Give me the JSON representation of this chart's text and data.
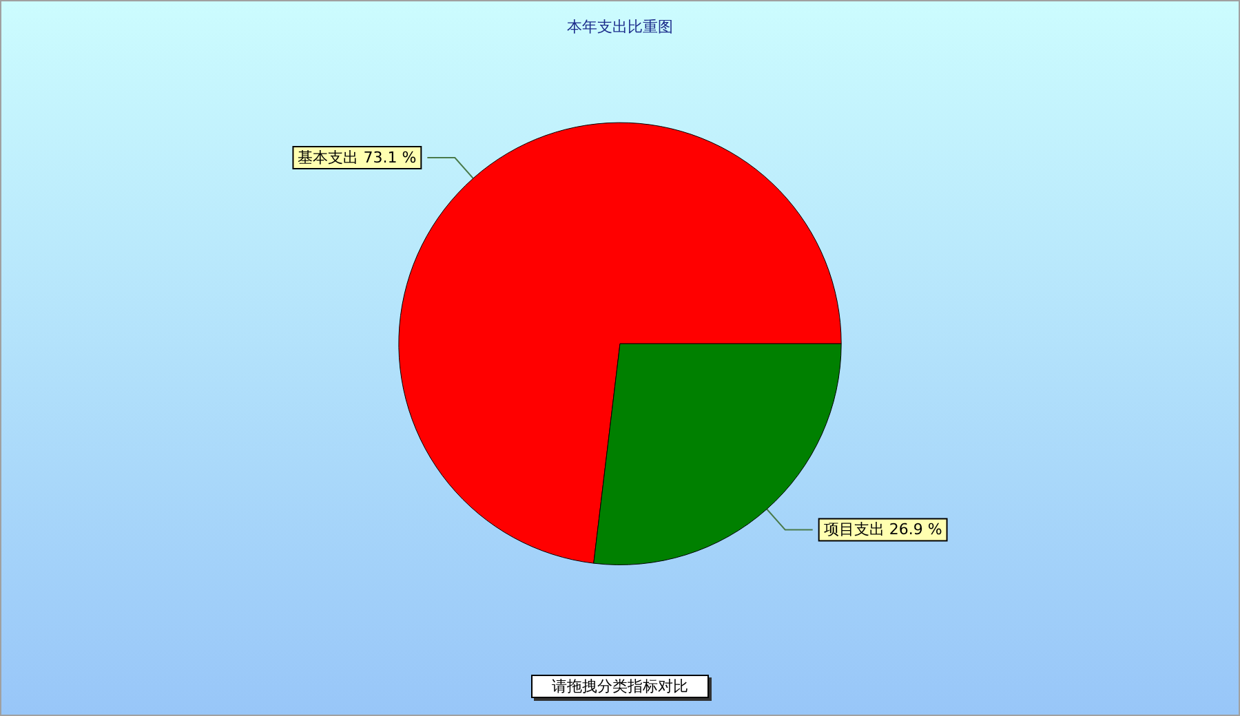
{
  "chart_data": {
    "type": "pie",
    "title": "本年支出比重图",
    "categories": [
      "基本支出",
      "项目支出"
    ],
    "values": [
      73.1,
      26.9
    ],
    "colors": [
      "#ff0000",
      "#008000"
    ],
    "value_labels": [
      "73.1 %",
      "26.9 %"
    ],
    "annotations": [
      "请拖拽分类指标对比"
    ]
  }
}
